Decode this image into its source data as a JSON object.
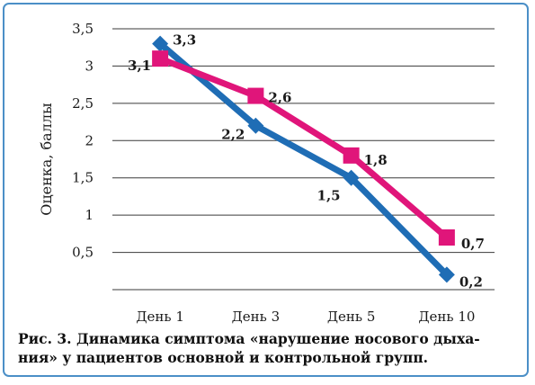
{
  "chart_data": {
    "type": "line",
    "categories": [
      "День 1",
      "День 3",
      "День 5",
      "День 10"
    ],
    "ylabel": "Оценка, баллы",
    "xlabel": "",
    "ylim": [
      0,
      3.5
    ],
    "yticks": [
      0.5,
      1,
      1.5,
      2,
      2.5,
      3,
      3.5
    ],
    "ytick_labels": [
      "0,5",
      "1",
      "1,5",
      "2",
      "2,5",
      "3",
      "3,5"
    ],
    "grid": true,
    "series": [
      {
        "color": "#1f6db5",
        "marker": "diamond",
        "values": [
          3.3,
          2.2,
          1.5,
          0.2
        ],
        "labels": [
          "3,3",
          "2,2",
          "1,5",
          "0,2"
        ]
      },
      {
        "color": "#e0157a",
        "marker": "square",
        "values": [
          3.1,
          2.6,
          1.8,
          0.7
        ],
        "labels": [
          "3,1",
          "2,6",
          "1,8",
          "0,7"
        ]
      }
    ]
  },
  "caption": {
    "lead": "Рис. 3.",
    "text": "Динамика симптома «нарушение носового дыха- ния» у пациентов основной и контрольной групп."
  },
  "colors": {
    "frame": "#4b8fc7",
    "grid": "#3a3a3a"
  }
}
